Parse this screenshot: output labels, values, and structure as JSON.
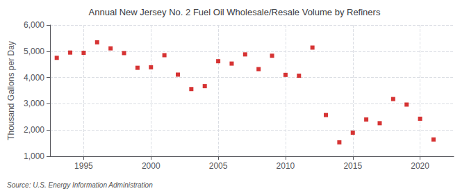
{
  "chart_data": {
    "type": "scatter",
    "title": "Annual New Jersey No. 2 Fuel Oil Wholesale/Resale Volume by Refiners",
    "ylabel": "Thousand Gallons per Day",
    "annotations": [
      "Source: U.S. Energy Information Administration"
    ],
    "x": [
      1993,
      1994,
      1995,
      1996,
      1997,
      1998,
      1999,
      2000,
      2001,
      2002,
      2003,
      2004,
      2005,
      2006,
      2007,
      2008,
      2009,
      2010,
      2011,
      2012,
      2013,
      2014,
      2015,
      2016,
      2017,
      2018,
      2019,
      2020,
      2021
    ],
    "values": [
      4750,
      4950,
      4940,
      5340,
      5110,
      4930,
      4370,
      4390,
      4850,
      4110,
      3560,
      3670,
      4620,
      4530,
      4880,
      4320,
      4830,
      4100,
      4070,
      5140,
      2570,
      1530,
      1900,
      2400,
      2260,
      3180,
      2970,
      2430,
      1640
    ],
    "color": "#CC0000",
    "marker": "square",
    "xlim": [
      1992.5,
      2022.5
    ],
    "xticks": [
      1995,
      2000,
      2005,
      2010,
      2015,
      2020
    ],
    "ylim": [
      1000,
      6000
    ],
    "yticks": [
      {
        "value": 1000,
        "label": "1,000"
      },
      {
        "value": 2000,
        "label": "2,000"
      },
      {
        "value": 3000,
        "label": "3,000"
      },
      {
        "value": 4000,
        "label": "4,000"
      },
      {
        "value": 5000,
        "label": "5,000"
      },
      {
        "value": 6000,
        "label": "6,000"
      }
    ],
    "grid": true
  }
}
